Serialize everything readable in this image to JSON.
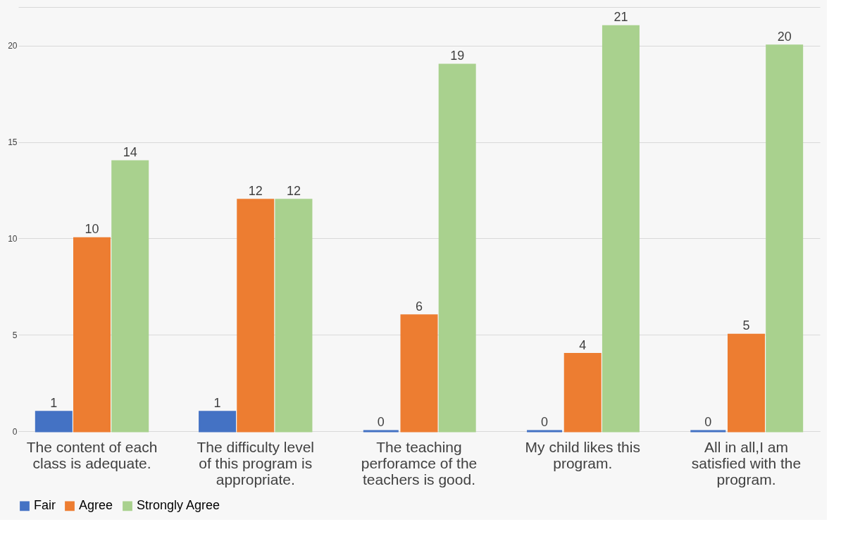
{
  "chart_data": {
    "type": "bar",
    "categories": [
      "The content of each class is adequate.",
      "The difficulty level of this program is appropriate.",
      "The teaching perforamce of the teachers is good.",
      "My child likes this program.",
      "All in all,I am satisfied with the program."
    ],
    "series": [
      {
        "name": "Fair",
        "color": "#4472c4",
        "values": [
          1,
          1,
          0,
          0,
          0
        ]
      },
      {
        "name": "Agree",
        "color": "#ed7d31",
        "values": [
          10,
          12,
          6,
          4,
          5
        ]
      },
      {
        "name": "Strongly Agree",
        "color": "#a9d18e",
        "values": [
          14,
          12,
          19,
          21,
          20
        ]
      }
    ],
    "ylim": [
      0,
      22
    ],
    "yticks": [
      0,
      5,
      10,
      15,
      20,
      {
        "value": 22,
        "label": null
      }
    ],
    "grid": "y",
    "legend": "bottom",
    "data_labels": true
  }
}
